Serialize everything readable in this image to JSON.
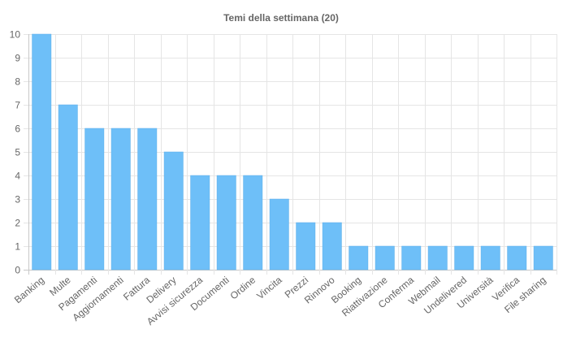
{
  "chart_data": {
    "type": "bar",
    "title": "Temi della settimana (20)",
    "categories": [
      "Banking",
      "Multe",
      "Pagamenti",
      "Aggiornamenti",
      "Fattura",
      "Delivery",
      "Avvisi sicurezza",
      "Documenti",
      "Ordine",
      "Vincita",
      "Prezzi",
      "Rinnovo",
      "Booking",
      "Riattivazione",
      "Conferma",
      "Webmail",
      "Undelivered",
      "Università",
      "Verifica",
      "File sharing"
    ],
    "values": [
      10,
      7,
      6,
      6,
      6,
      5,
      4,
      4,
      4,
      3,
      2,
      2,
      1,
      1,
      1,
      1,
      1,
      1,
      1,
      1
    ],
    "ylim": [
      0,
      10
    ],
    "yticks": [
      "0",
      "1",
      "2",
      "3",
      "4",
      "5",
      "6",
      "7",
      "8",
      "9",
      "10"
    ],
    "xlabel": "",
    "ylabel": "",
    "grid": true,
    "colors": {
      "bar": "#6ebff8",
      "bar_border": "#5aaee9"
    }
  }
}
